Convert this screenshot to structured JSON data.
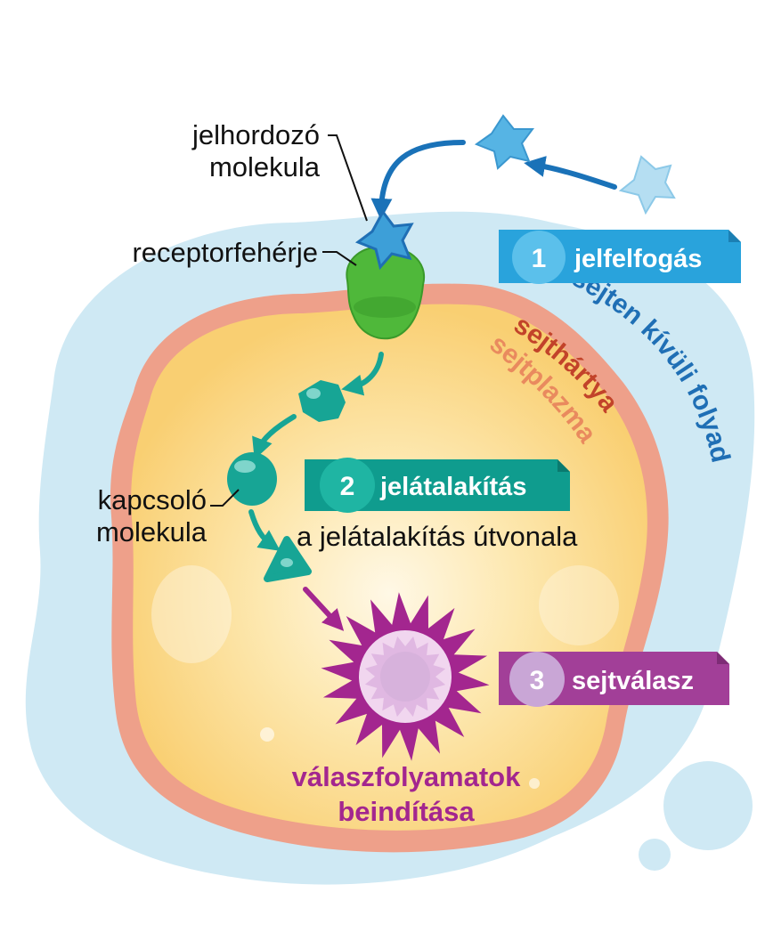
{
  "labels": {
    "signal_molecule_line1": "jelhordozó",
    "signal_molecule_line2": "molekula",
    "receptor": "receptorfehérje",
    "relay_line1": "kapcsoló",
    "relay_line2": "molekula",
    "pathway": "a jelátalakítás útvonala",
    "response_line1": "válaszfolyamatok",
    "response_line2": "beindítása",
    "extracellular": "sejten kívüli folyadéktér",
    "membrane": "sejthártya",
    "cytoplasm": "sejtplazma"
  },
  "steps": [
    {
      "number": "1",
      "label": "jelfelfogás",
      "color": "#29a3dc",
      "circle": "#5bc0eb"
    },
    {
      "number": "2",
      "label": "jelátalakítás",
      "color": "#0f9c8e",
      "circle": "#1fb5a3"
    },
    {
      "number": "3",
      "label": "sejtválasz",
      "color": "#a23f98",
      "circle": "#c9a6d6"
    }
  ],
  "colors": {
    "extracellular_fluid": "#cfe9f4",
    "membrane": "#eea08a",
    "cytoplasm": "#fbd98a",
    "signal_molecule": "#4aa6dc",
    "receptor": "#4fb83a",
    "relay": "#17a595",
    "response": "#a3268f",
    "arrow_blue": "#1a72b8",
    "extracellular_text": "#1f6fb5",
    "membrane_text": "#c2432a",
    "cytoplasm_text": "#e98a5e",
    "response_text": "#a3268f"
  }
}
